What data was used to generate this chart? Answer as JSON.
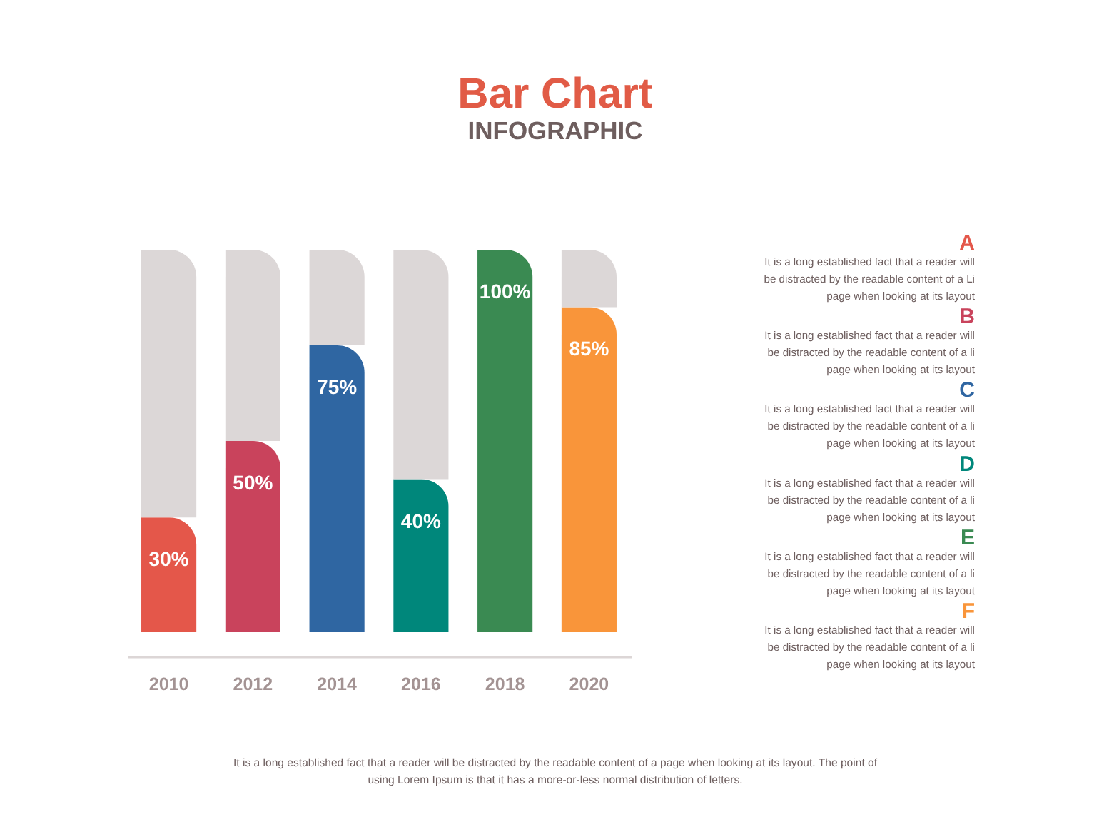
{
  "chart_data": {
    "type": "bar",
    "title": "Bar Chart",
    "subtitle": "INFOGRAPHIC",
    "categories": [
      "2010",
      "2012",
      "2014",
      "2016",
      "2018",
      "2020"
    ],
    "stacked": true,
    "series": [
      {
        "colors": [
          "#e4574a",
          "#c9435c",
          "#2f66a2",
          "#00877b",
          "#3a8a52",
          "#f9953a"
        ],
        "values": [
          30,
          50,
          75,
          40,
          100,
          85
        ],
        "value_labels": [
          "30%",
          "50%",
          "75%",
          "40%",
          "100%",
          "85%"
        ]
      },
      {
        "color": "#dcd7d7",
        "values": [
          70,
          50,
          25,
          60,
          null,
          15
        ]
      }
    ],
    "ylim": [
      0,
      100
    ],
    "tick_labels": "x",
    "annotations": [
      "A",
      "It is a long established fact that a reader will\nbe distracted by the readable content of a Li\npage when looking at its layout",
      "B",
      "It is a long established fact that a reader will\nbe distracted by the readable content of a li\npage when looking at its layout",
      "C",
      "It is a long established fact that a reader will\nbe distracted by the readable content of a li\npage when looking at its layout",
      "D",
      "It is a long established fact that a reader will\nbe distracted by the readable content of a li\npage when looking at its layout",
      "E",
      "It is a long established fact that a reader will\nbe distracted by the readable content of a li\npage when looking at its layout",
      "F",
      "It is a long established fact that a reader will\nbe distracted by the readable content of a li\npage when looking at its layout",
      "It is a long established fact that a reader will be distracted by the readable content of a page when looking at its layout. The point of\nusing Lorem Ipsum is that it has a more-or-less normal distribution of letters."
    ]
  }
}
